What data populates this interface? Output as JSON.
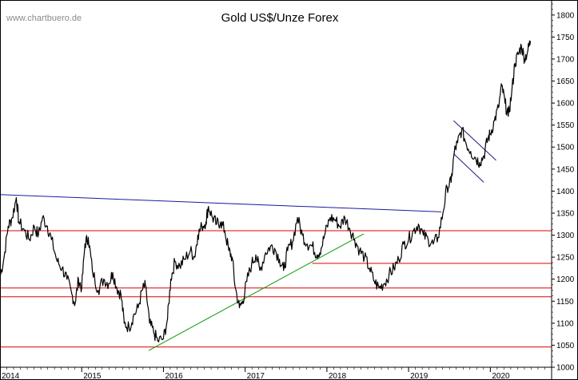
{
  "watermark": "www.chartbuero.de",
  "chart_data": {
    "type": "line",
    "title": "Gold US$/Unze Forex",
    "xlabel": "",
    "ylabel": "",
    "xlim": [
      2014.0,
      2020.75
    ],
    "ylim": [
      1000,
      1825
    ],
    "x_ticks": [
      "2014",
      "2015",
      "2016",
      "2017",
      "2018",
      "2019",
      "2020"
    ],
    "y_ticks": [
      1000,
      1050,
      1100,
      1150,
      1200,
      1250,
      1300,
      1350,
      1400,
      1450,
      1500,
      1550,
      1600,
      1650,
      1700,
      1750,
      1800
    ],
    "y_axis_position": "right",
    "grid": false,
    "series": [
      {
        "color": "#000000",
        "points": [
          [
            2014.0,
            1205
          ],
          [
            2014.05,
            1250
          ],
          [
            2014.1,
            1320
          ],
          [
            2014.15,
            1340
          ],
          [
            2014.2,
            1385
          ],
          [
            2014.23,
            1330
          ],
          [
            2014.3,
            1310
          ],
          [
            2014.36,
            1290
          ],
          [
            2014.42,
            1320
          ],
          [
            2014.47,
            1300
          ],
          [
            2014.52,
            1340
          ],
          [
            2014.58,
            1320
          ],
          [
            2014.63,
            1290
          ],
          [
            2014.7,
            1240
          ],
          [
            2014.76,
            1225
          ],
          [
            2014.82,
            1200
          ],
          [
            2014.88,
            1165
          ],
          [
            2014.92,
            1145
          ],
          [
            2014.96,
            1200
          ],
          [
            2015.0,
            1180
          ],
          [
            2015.04,
            1280
          ],
          [
            2015.08,
            1295
          ],
          [
            2015.13,
            1220
          ],
          [
            2015.2,
            1175
          ],
          [
            2015.27,
            1200
          ],
          [
            2015.33,
            1190
          ],
          [
            2015.38,
            1215
          ],
          [
            2015.43,
            1180
          ],
          [
            2015.48,
            1165
          ],
          [
            2015.52,
            1100
          ],
          [
            2015.58,
            1090
          ],
          [
            2015.63,
            1115
          ],
          [
            2015.69,
            1135
          ],
          [
            2015.74,
            1175
          ],
          [
            2015.78,
            1185
          ],
          [
            2015.83,
            1100
          ],
          [
            2015.88,
            1080
          ],
          [
            2015.93,
            1060
          ],
          [
            2016.0,
            1065
          ],
          [
            2016.05,
            1110
          ],
          [
            2016.09,
            1200
          ],
          [
            2016.14,
            1240
          ],
          [
            2016.2,
            1230
          ],
          [
            2016.26,
            1245
          ],
          [
            2016.33,
            1265
          ],
          [
            2016.38,
            1250
          ],
          [
            2016.42,
            1300
          ],
          [
            2016.47,
            1320
          ],
          [
            2016.52,
            1330
          ],
          [
            2016.55,
            1365
          ],
          [
            2016.6,
            1340
          ],
          [
            2016.65,
            1325
          ],
          [
            2016.7,
            1330
          ],
          [
            2016.75,
            1310
          ],
          [
            2016.8,
            1265
          ],
          [
            2016.84,
            1250
          ],
          [
            2016.88,
            1180
          ],
          [
            2016.93,
            1135
          ],
          [
            2016.97,
            1150
          ],
          [
            2017.02,
            1195
          ],
          [
            2017.08,
            1235
          ],
          [
            2017.13,
            1255
          ],
          [
            2017.18,
            1220
          ],
          [
            2017.25,
            1260
          ],
          [
            2017.31,
            1275
          ],
          [
            2017.36,
            1270
          ],
          [
            2017.42,
            1245
          ],
          [
            2017.47,
            1220
          ],
          [
            2017.52,
            1265
          ],
          [
            2017.58,
            1285
          ],
          [
            2017.64,
            1340
          ],
          [
            2017.7,
            1300
          ],
          [
            2017.76,
            1280
          ],
          [
            2017.82,
            1275
          ],
          [
            2017.88,
            1255
          ],
          [
            2017.93,
            1270
          ],
          [
            2017.98,
            1305
          ],
          [
            2018.04,
            1340
          ],
          [
            2018.1,
            1335
          ],
          [
            2018.16,
            1320
          ],
          [
            2018.22,
            1340
          ],
          [
            2018.28,
            1315
          ],
          [
            2018.34,
            1290
          ],
          [
            2018.4,
            1265
          ],
          [
            2018.46,
            1250
          ],
          [
            2018.52,
            1225
          ],
          [
            2018.58,
            1195
          ],
          [
            2018.64,
            1180
          ],
          [
            2018.7,
            1190
          ],
          [
            2018.76,
            1210
          ],
          [
            2018.82,
            1225
          ],
          [
            2018.88,
            1245
          ],
          [
            2018.94,
            1280
          ],
          [
            2019.0,
            1290
          ],
          [
            2019.06,
            1310
          ],
          [
            2019.12,
            1325
          ],
          [
            2019.18,
            1300
          ],
          [
            2019.24,
            1290
          ],
          [
            2019.3,
            1280
          ],
          [
            2019.36,
            1295
          ],
          [
            2019.42,
            1350
          ],
          [
            2019.47,
            1410
          ],
          [
            2019.52,
            1420
          ],
          [
            2019.56,
            1490
          ],
          [
            2019.6,
            1510
          ],
          [
            2019.65,
            1540
          ],
          [
            2019.7,
            1510
          ],
          [
            2019.76,
            1490
          ],
          [
            2019.82,
            1475
          ],
          [
            2019.87,
            1465
          ],
          [
            2019.92,
            1480
          ],
          [
            2019.97,
            1520
          ],
          [
            2020.0,
            1530
          ],
          [
            2020.05,
            1560
          ],
          [
            2020.1,
            1590
          ],
          [
            2020.14,
            1640
          ],
          [
            2020.18,
            1600
          ],
          [
            2020.22,
            1570
          ],
          [
            2020.26,
            1620
          ],
          [
            2020.3,
            1690
          ],
          [
            2020.34,
            1710
          ],
          [
            2020.38,
            1730
          ],
          [
            2020.42,
            1700
          ],
          [
            2020.46,
            1720
          ],
          [
            2020.49,
            1740
          ]
        ]
      }
    ],
    "horizontal_lines": [
      {
        "y": 1310,
        "color": "#e00000"
      },
      {
        "y": 1236,
        "color": "#e00000",
        "x_start": 2017.82
      },
      {
        "y": 1180,
        "color": "#e00000"
      },
      {
        "y": 1160,
        "color": "#e00000"
      },
      {
        "y": 1046,
        "color": "#e00000"
      }
    ],
    "trend_lines": [
      {
        "color": "#1a1aa0",
        "from": [
          2014.0,
          1392
        ],
        "to": [
          2019.4,
          1353
        ]
      },
      {
        "color": "#00a000",
        "from": [
          2015.82,
          1038
        ],
        "to": [
          2018.45,
          1303
        ]
      },
      {
        "color": "#1a1aa0",
        "from": [
          2019.55,
          1560
        ],
        "to": [
          2020.07,
          1470
        ]
      },
      {
        "color": "#1a1aa0",
        "from": [
          2019.55,
          1485
        ],
        "to": [
          2019.92,
          1420
        ]
      }
    ]
  }
}
